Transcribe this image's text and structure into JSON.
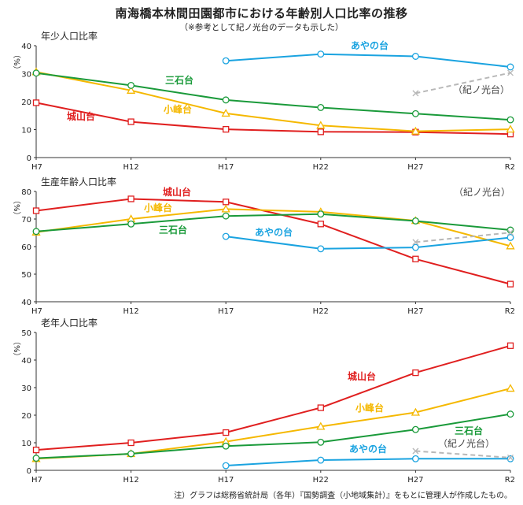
{
  "header": {
    "title": "南海橋本林間田園都市における年齢別人口比率の推移",
    "subtitle": "（※参考として紀ノ光台のデータも示した）"
  },
  "footnote": "注）グラフは総務省統計局（各年）『国勢調査（小地域集計）』をもとに管理人が作成したもの。",
  "colors": {
    "城山台": "#e01f1f",
    "小峰台": "#f5b800",
    "三石台": "#1a9a3a",
    "あやの台": "#1aa3e0",
    "紀ノ光台": "#b8b8b8"
  },
  "chart_data": [
    {
      "type": "line",
      "title": "年少人口比率",
      "ylabel": "（%）",
      "categories": [
        "H7",
        "H12",
        "H17",
        "H22",
        "H27",
        "R2"
      ],
      "ylim": [
        0,
        40
      ],
      "yticks": [
        0,
        10,
        20,
        30,
        40
      ],
      "grid": false,
      "series": [
        {
          "name": "城山台",
          "marker": "square",
          "values": [
            19.6,
            12.8,
            10.1,
            9.2,
            9.1,
            8.4
          ]
        },
        {
          "name": "小峰台",
          "marker": "triangle",
          "values": [
            30.6,
            24.0,
            15.8,
            11.5,
            9.4,
            10.1
          ]
        },
        {
          "name": "三石台",
          "marker": "circle",
          "values": [
            30.2,
            25.8,
            20.6,
            17.9,
            15.7,
            13.5
          ]
        },
        {
          "name": "あやの台",
          "marker": "circle",
          "values": [
            null,
            null,
            34.6,
            37.0,
            36.2,
            32.4
          ]
        },
        {
          "name": "紀ノ光台",
          "marker": "x",
          "dashed": true,
          "values": [
            null,
            null,
            null,
            null,
            23.0,
            30.3
          ]
        }
      ]
    },
    {
      "type": "line",
      "title": "生産年齢人口比率",
      "ylabel": "（%）",
      "categories": [
        "H7",
        "H12",
        "H17",
        "H22",
        "H27",
        "R2"
      ],
      "ylim": [
        40,
        80
      ],
      "yticks": [
        40,
        50,
        60,
        70,
        80
      ],
      "grid": false,
      "series": [
        {
          "name": "城山台",
          "marker": "square",
          "values": [
            73.0,
            77.3,
            76.2,
            68.2,
            55.5,
            46.4
          ]
        },
        {
          "name": "小峰台",
          "marker": "triangle",
          "values": [
            65.2,
            70.0,
            73.6,
            72.6,
            69.4,
            60.2
          ]
        },
        {
          "name": "三石台",
          "marker": "circle",
          "values": [
            65.5,
            68.2,
            71.1,
            71.8,
            69.3,
            66.0
          ]
        },
        {
          "name": "あやの台",
          "marker": "circle",
          "values": [
            null,
            null,
            63.7,
            59.2,
            59.7,
            63.3
          ]
        },
        {
          "name": "紀ノ光台",
          "marker": "x",
          "dashed": true,
          "values": [
            null,
            null,
            null,
            null,
            61.6,
            65.1
          ]
        }
      ]
    },
    {
      "type": "line",
      "title": "老年人口比率",
      "ylabel": "（%）",
      "categories": [
        "H7",
        "H12",
        "H17",
        "H22",
        "H27",
        "R2"
      ],
      "ylim": [
        0,
        50
      ],
      "yticks": [
        0,
        10,
        20,
        30,
        40,
        50
      ],
      "grid": false,
      "series": [
        {
          "name": "城山台",
          "marker": "square",
          "values": [
            7.4,
            10.0,
            13.7,
            22.7,
            35.4,
            45.2
          ]
        },
        {
          "name": "小峰台",
          "marker": "triangle",
          "values": [
            4.2,
            6.0,
            10.4,
            15.9,
            21.0,
            29.7
          ]
        },
        {
          "name": "三石台",
          "marker": "circle",
          "values": [
            4.4,
            6.0,
            8.8,
            10.2,
            14.8,
            20.4
          ]
        },
        {
          "name": "あやの台",
          "marker": "circle",
          "values": [
            null,
            null,
            1.7,
            3.7,
            4.2,
            4.2
          ]
        },
        {
          "name": "紀ノ光台",
          "marker": "x",
          "dashed": true,
          "values": [
            null,
            null,
            null,
            null,
            7.0,
            4.6
          ]
        }
      ]
    }
  ]
}
